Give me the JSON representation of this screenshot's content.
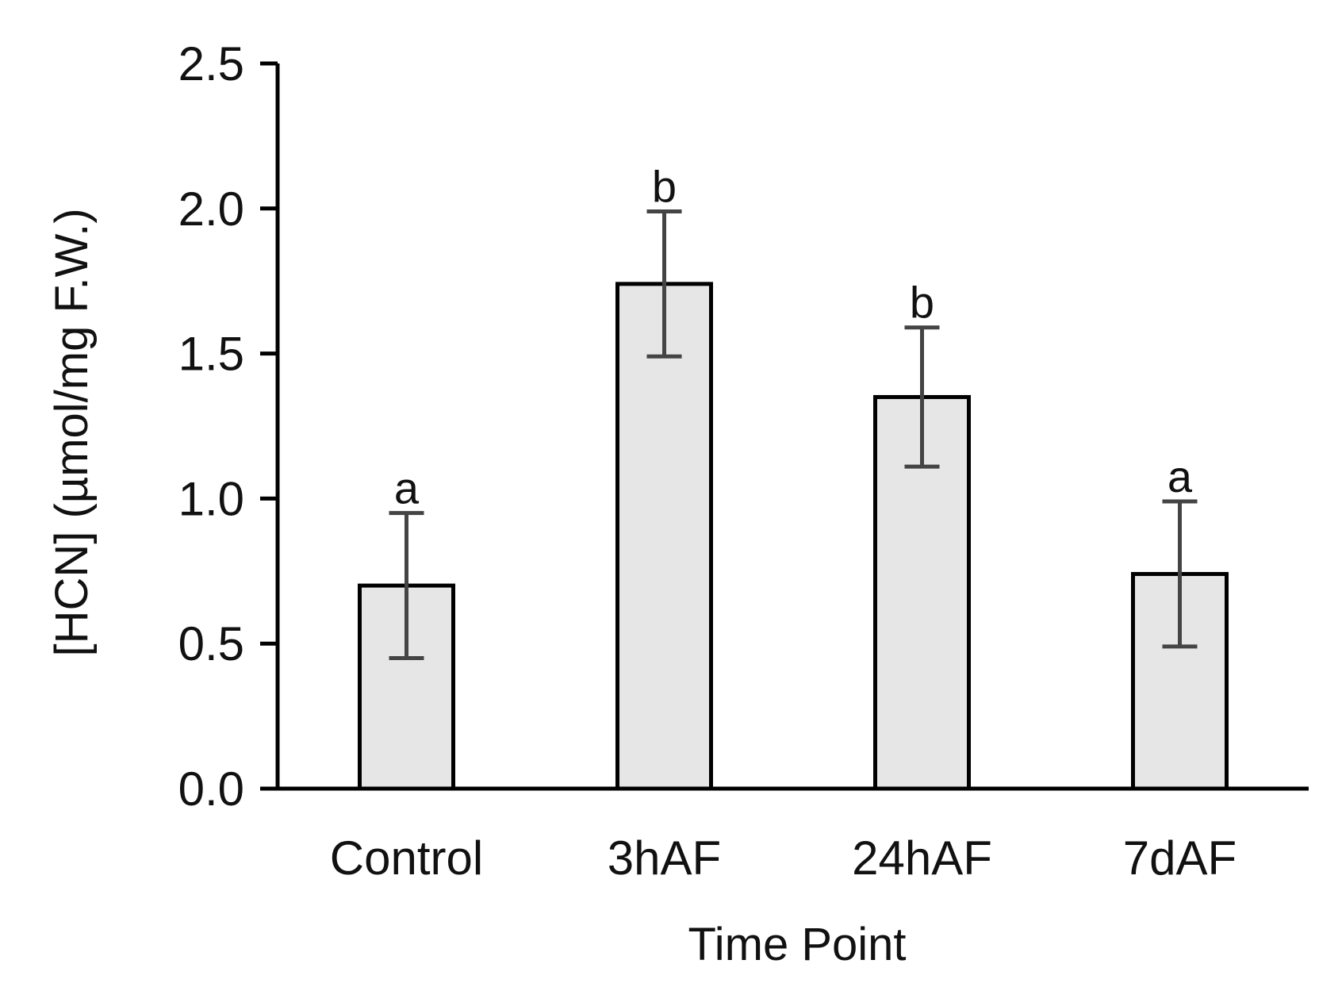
{
  "chart_data": {
    "type": "bar",
    "title": "",
    "xlabel": "Time Point",
    "ylabel": "[HCN] (µmol/mg F.W.)",
    "ylim": [
      0,
      2.5
    ],
    "y_ticks": [
      "0.0",
      "0.5",
      "1.0",
      "1.5",
      "2.0",
      "2.5"
    ],
    "y_tick_values": [
      0,
      0.5,
      1.0,
      1.5,
      2.0,
      2.5
    ],
    "categories": [
      "Control",
      "3hAF",
      "24hAF",
      "7dAF"
    ],
    "values": [
      0.7,
      1.74,
      1.35,
      0.74
    ],
    "errors": [
      0.25,
      0.25,
      0.24,
      0.25
    ],
    "significance_letters": [
      "a",
      "b",
      "b",
      "a"
    ],
    "grid": false,
    "legend": "none",
    "colors": {
      "bar_fill": "#e6e6e6",
      "bar_stroke": "#000000",
      "error_bar": "#444444",
      "axis": "#000000",
      "text": "#111111"
    }
  }
}
